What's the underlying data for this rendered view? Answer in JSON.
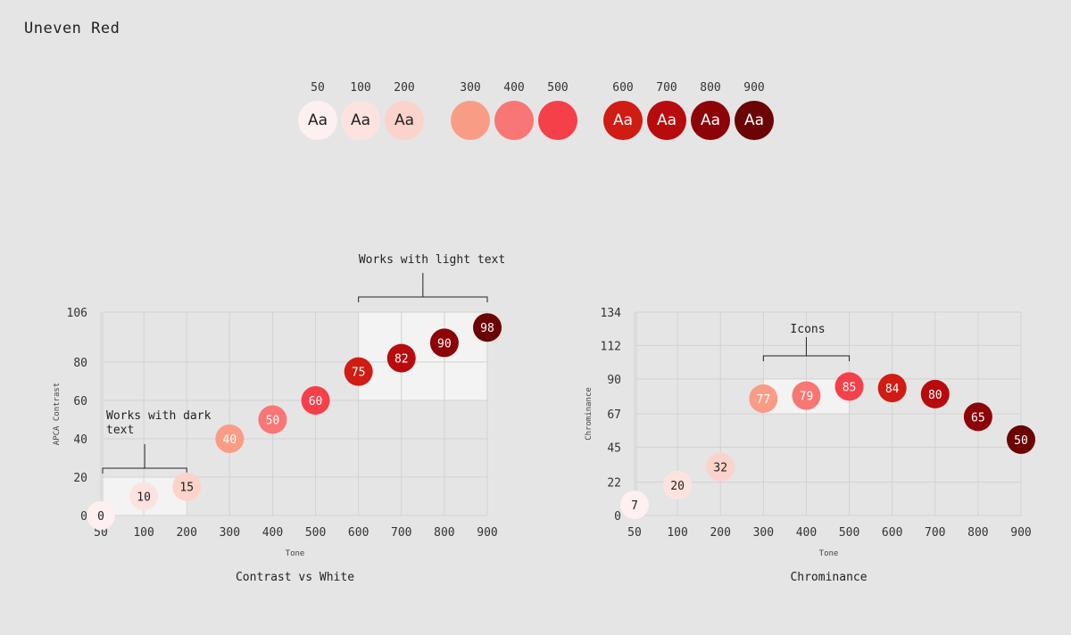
{
  "page": {
    "title": "Uneven Red"
  },
  "palette": {
    "swatches": [
      {
        "label": "50",
        "color": "#fdf0ef",
        "sample": "Aa",
        "text_color": "#222222"
      },
      {
        "label": "100",
        "color": "#fde3df",
        "sample": "Aa",
        "text_color": "#222222"
      },
      {
        "label": "200",
        "color": "#fbd3cb",
        "sample": "Aa",
        "text_color": "#222222"
      },
      {
        "label": "300",
        "color": "#f99c86",
        "sample": "",
        "text_color": "#222222"
      },
      {
        "label": "400",
        "color": "#f87674",
        "sample": "",
        "text_color": "#222222"
      },
      {
        "label": "500",
        "color": "#f5404a",
        "sample": "",
        "text_color": "#222222"
      },
      {
        "label": "600",
        "color": "#d01c13",
        "sample": "Aa",
        "text_color": "#ffffff"
      },
      {
        "label": "700",
        "color": "#b80b0e",
        "sample": "Aa",
        "text_color": "#ffffff"
      },
      {
        "label": "800",
        "color": "#8d0408",
        "sample": "Aa",
        "text_color": "#ffffff"
      },
      {
        "label": "900",
        "color": "#6a0405",
        "sample": "Aa",
        "text_color": "#ffffff"
      }
    ]
  },
  "chart_data": [
    {
      "type": "scatter",
      "title": "Contrast vs White",
      "xlabel": "Tone",
      "ylabel": "APCA Contrast",
      "categories": [
        "50",
        "100",
        "200",
        "300",
        "400",
        "500",
        "600",
        "700",
        "800",
        "900"
      ],
      "values": [
        0,
        10,
        15,
        40,
        50,
        60,
        75,
        82,
        90,
        98
      ],
      "point_labels": [
        "0",
        "10",
        "15",
        "40",
        "50",
        "60",
        "75",
        "82",
        "90",
        "98"
      ],
      "yticks": [
        0,
        20,
        40,
        60,
        80,
        106
      ],
      "ylim": [
        0,
        106
      ],
      "grid": true,
      "annotations": [
        {
          "text": "Works with dark text",
          "lines": [
            "Works with dark",
            "text"
          ],
          "x_range": [
            "50",
            "200"
          ],
          "y_range": [
            0,
            20
          ]
        },
        {
          "text": "Works with light text",
          "lines": [
            "Works with light text"
          ],
          "x_range": [
            "600",
            "900"
          ],
          "y_range": [
            60,
            106
          ]
        }
      ]
    },
    {
      "type": "scatter",
      "title": "Chrominance",
      "xlabel": "Tone",
      "ylabel": "Chrominance",
      "categories": [
        "50",
        "100",
        "200",
        "300",
        "400",
        "500",
        "600",
        "700",
        "800",
        "900"
      ],
      "values": [
        7,
        20,
        32,
        77,
        79,
        85,
        84,
        80,
        65,
        50
      ],
      "point_labels": [
        "7",
        "20",
        "32",
        "77",
        "79",
        "85",
        "84",
        "80",
        "65",
        "50"
      ],
      "yticks": [
        0,
        22,
        45,
        67,
        90,
        112,
        134
      ],
      "ylim": [
        0,
        134
      ],
      "grid": true,
      "annotations": [
        {
          "text": "Icons",
          "lines": [
            "Icons"
          ],
          "x_range": [
            "300",
            "500"
          ],
          "y_range": [
            67,
            90
          ]
        }
      ]
    }
  ]
}
